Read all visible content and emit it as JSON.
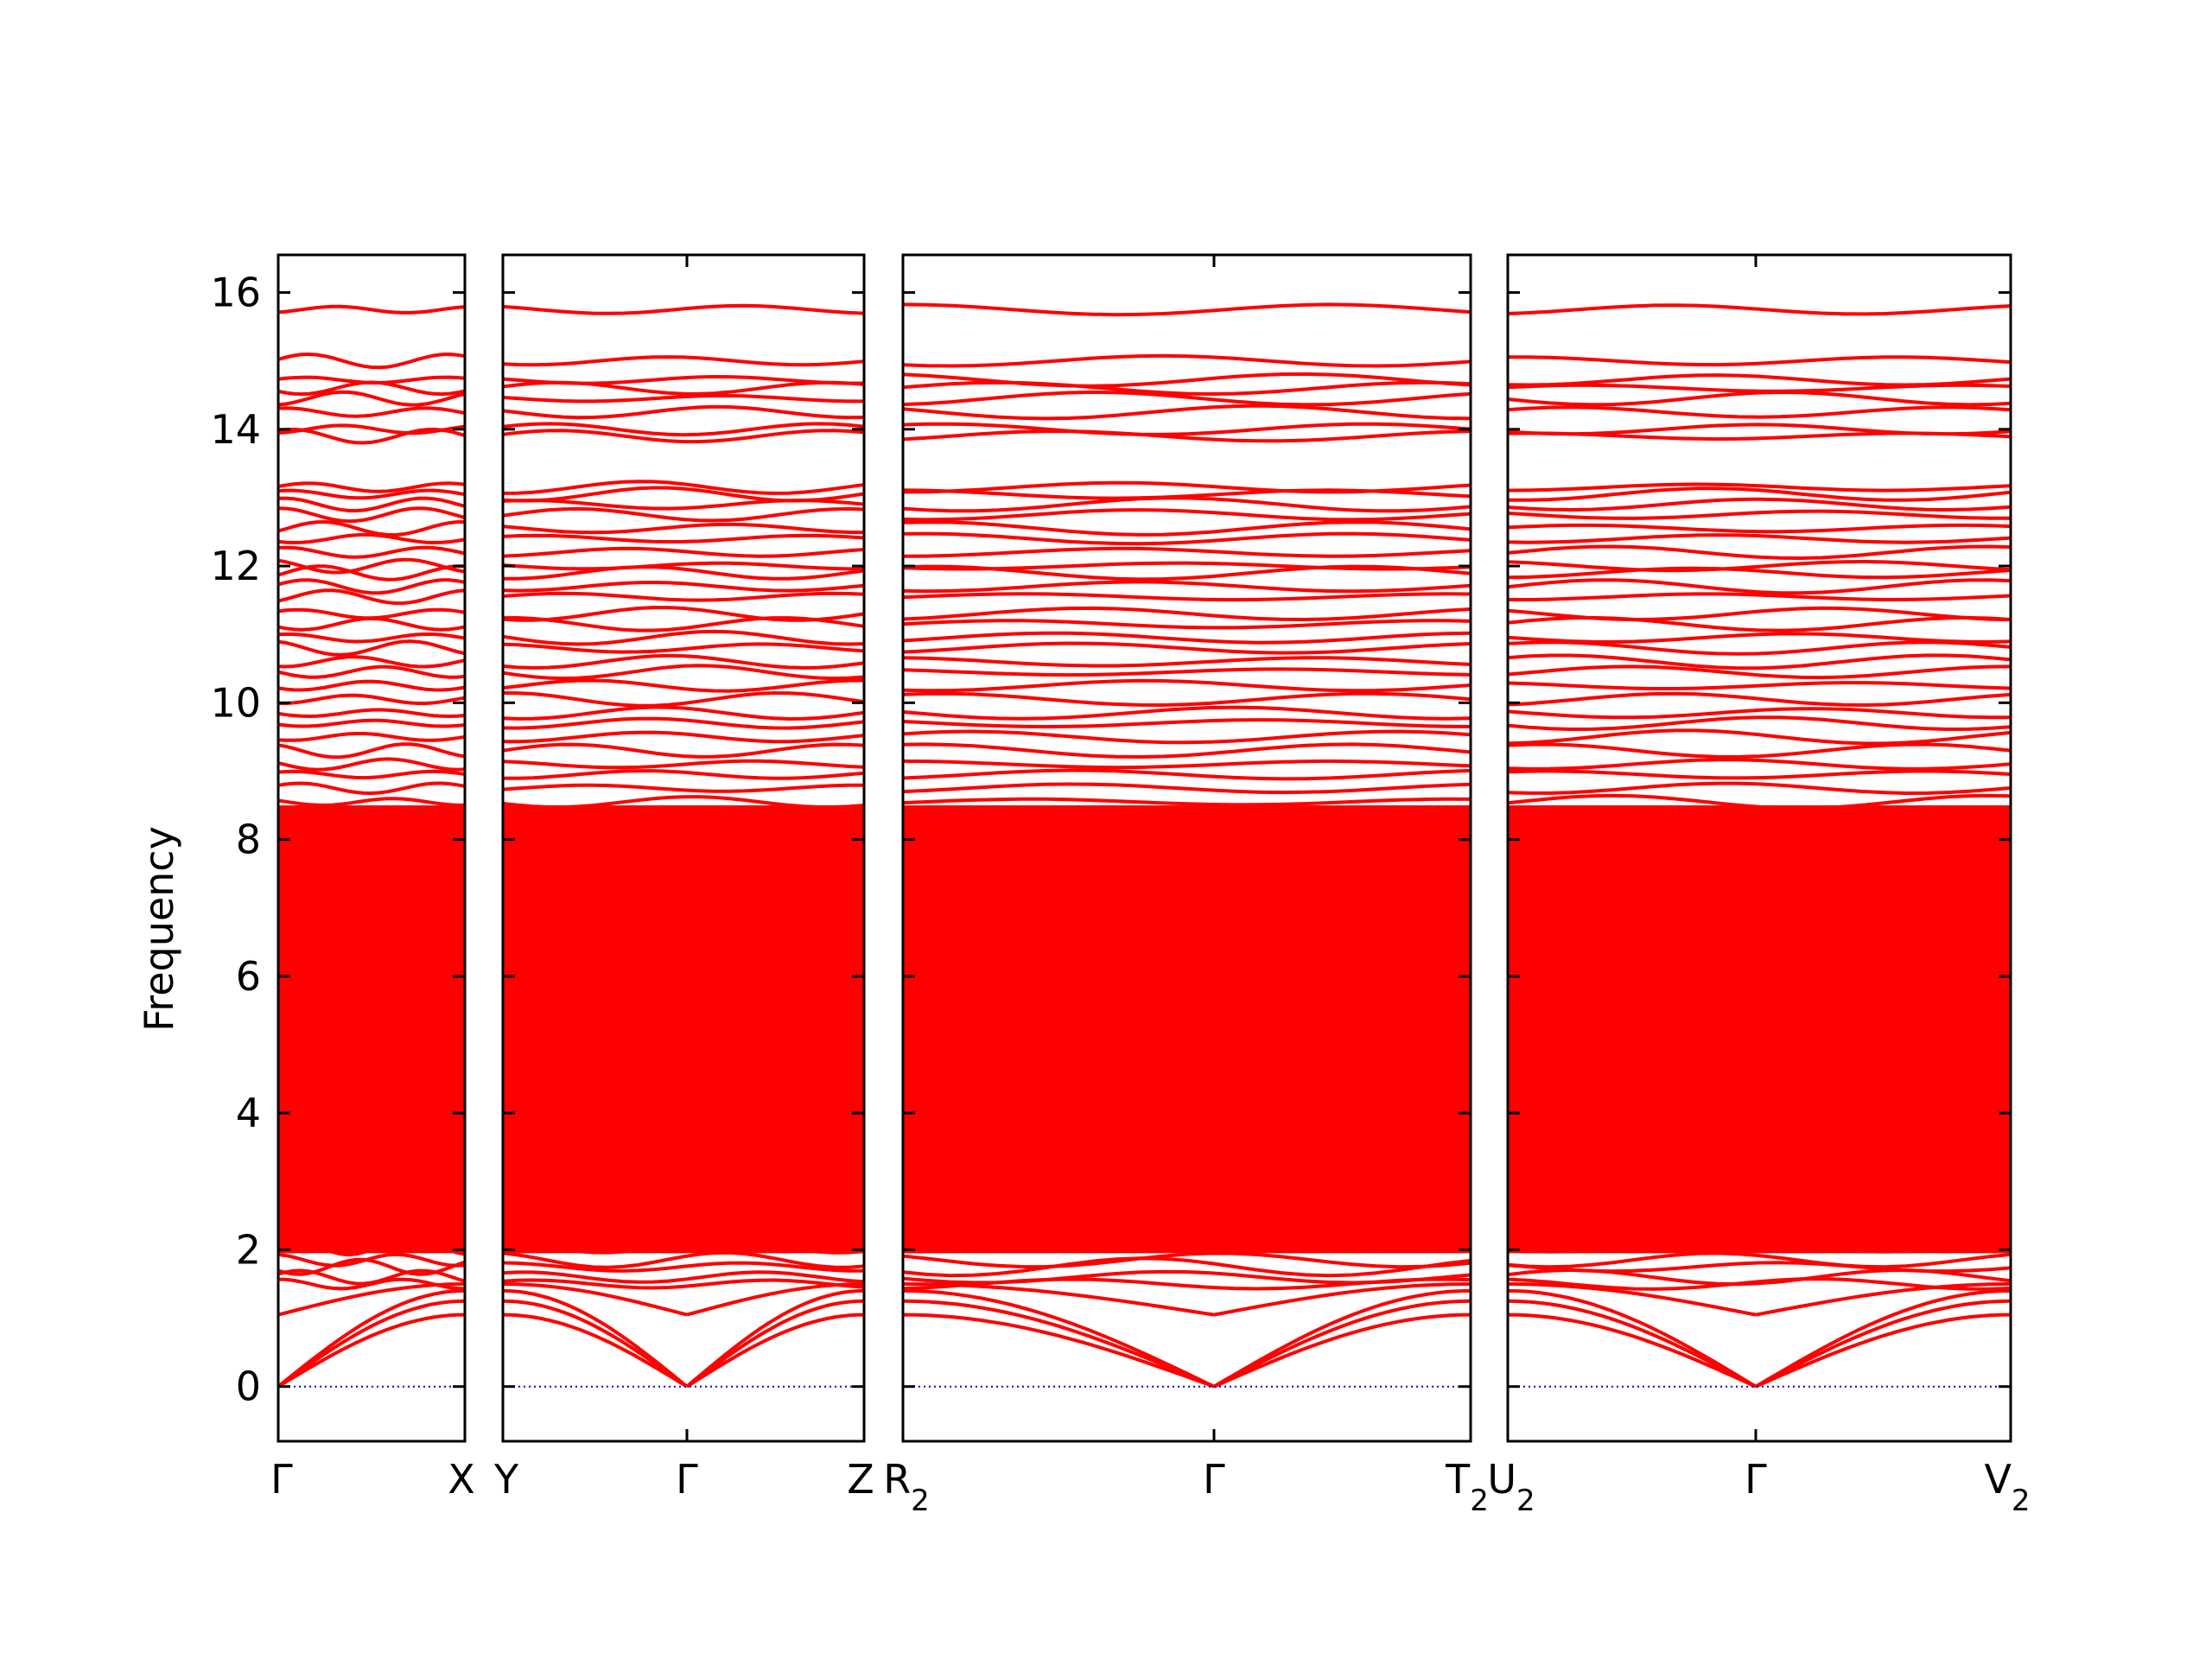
{
  "chart_data": {
    "type": "line",
    "ylabel": "Frequency",
    "ylim": [
      -0.8,
      16.55
    ],
    "yticks": [
      "0",
      "2",
      "4",
      "6",
      "8",
      "10",
      "12",
      "14",
      "16"
    ],
    "grid": false,
    "line_color": "#ff0000",
    "zero_line_color": "#0000cc",
    "panels": [
      {
        "start_label": "Γ",
        "mid_label": "",
        "end_label": "X",
        "end_sub": ""
      },
      {
        "start_label": "Y",
        "mid_label": "Γ",
        "end_label": "Z",
        "end_sub": ""
      },
      {
        "start_label": "R",
        "start_sub": "2",
        "mid_label": "Γ",
        "end_label": "T",
        "end_sub": "2"
      },
      {
        "start_label": "U",
        "start_sub": "2",
        "mid_label": "Γ",
        "end_label": "V",
        "end_sub": "2"
      }
    ],
    "upper_bands": [
      15.75,
      15.0,
      14.72,
      14.6,
      14.45,
      14.25,
      14.0,
      13.9,
      13.15,
      13.05,
      12.9,
      12.75,
      12.55,
      12.4,
      12.2,
      12.0,
      11.9,
      11.7,
      11.55,
      11.3,
      11.15,
      10.95,
      10.8,
      10.6,
      10.45,
      10.25,
      10.05,
      9.85,
      9.7,
      9.5,
      9.3,
      9.1,
      8.95,
      8.75,
      8.55
    ],
    "acoustic_bands": [
      {
        "gamma": 0.0,
        "zone": 1.05
      },
      {
        "gamma": 0.0,
        "zone": 1.25
      },
      {
        "gamma": 0.0,
        "zone": 1.4
      },
      {
        "gamma": 1.05,
        "zone": 1.5
      }
    ],
    "low_optical_bands": [
      1.5,
      1.6,
      1.75,
      1.85,
      2.05,
      2.2,
      2.45,
      2.6,
      2.85,
      3.55,
      3.85
    ]
  }
}
